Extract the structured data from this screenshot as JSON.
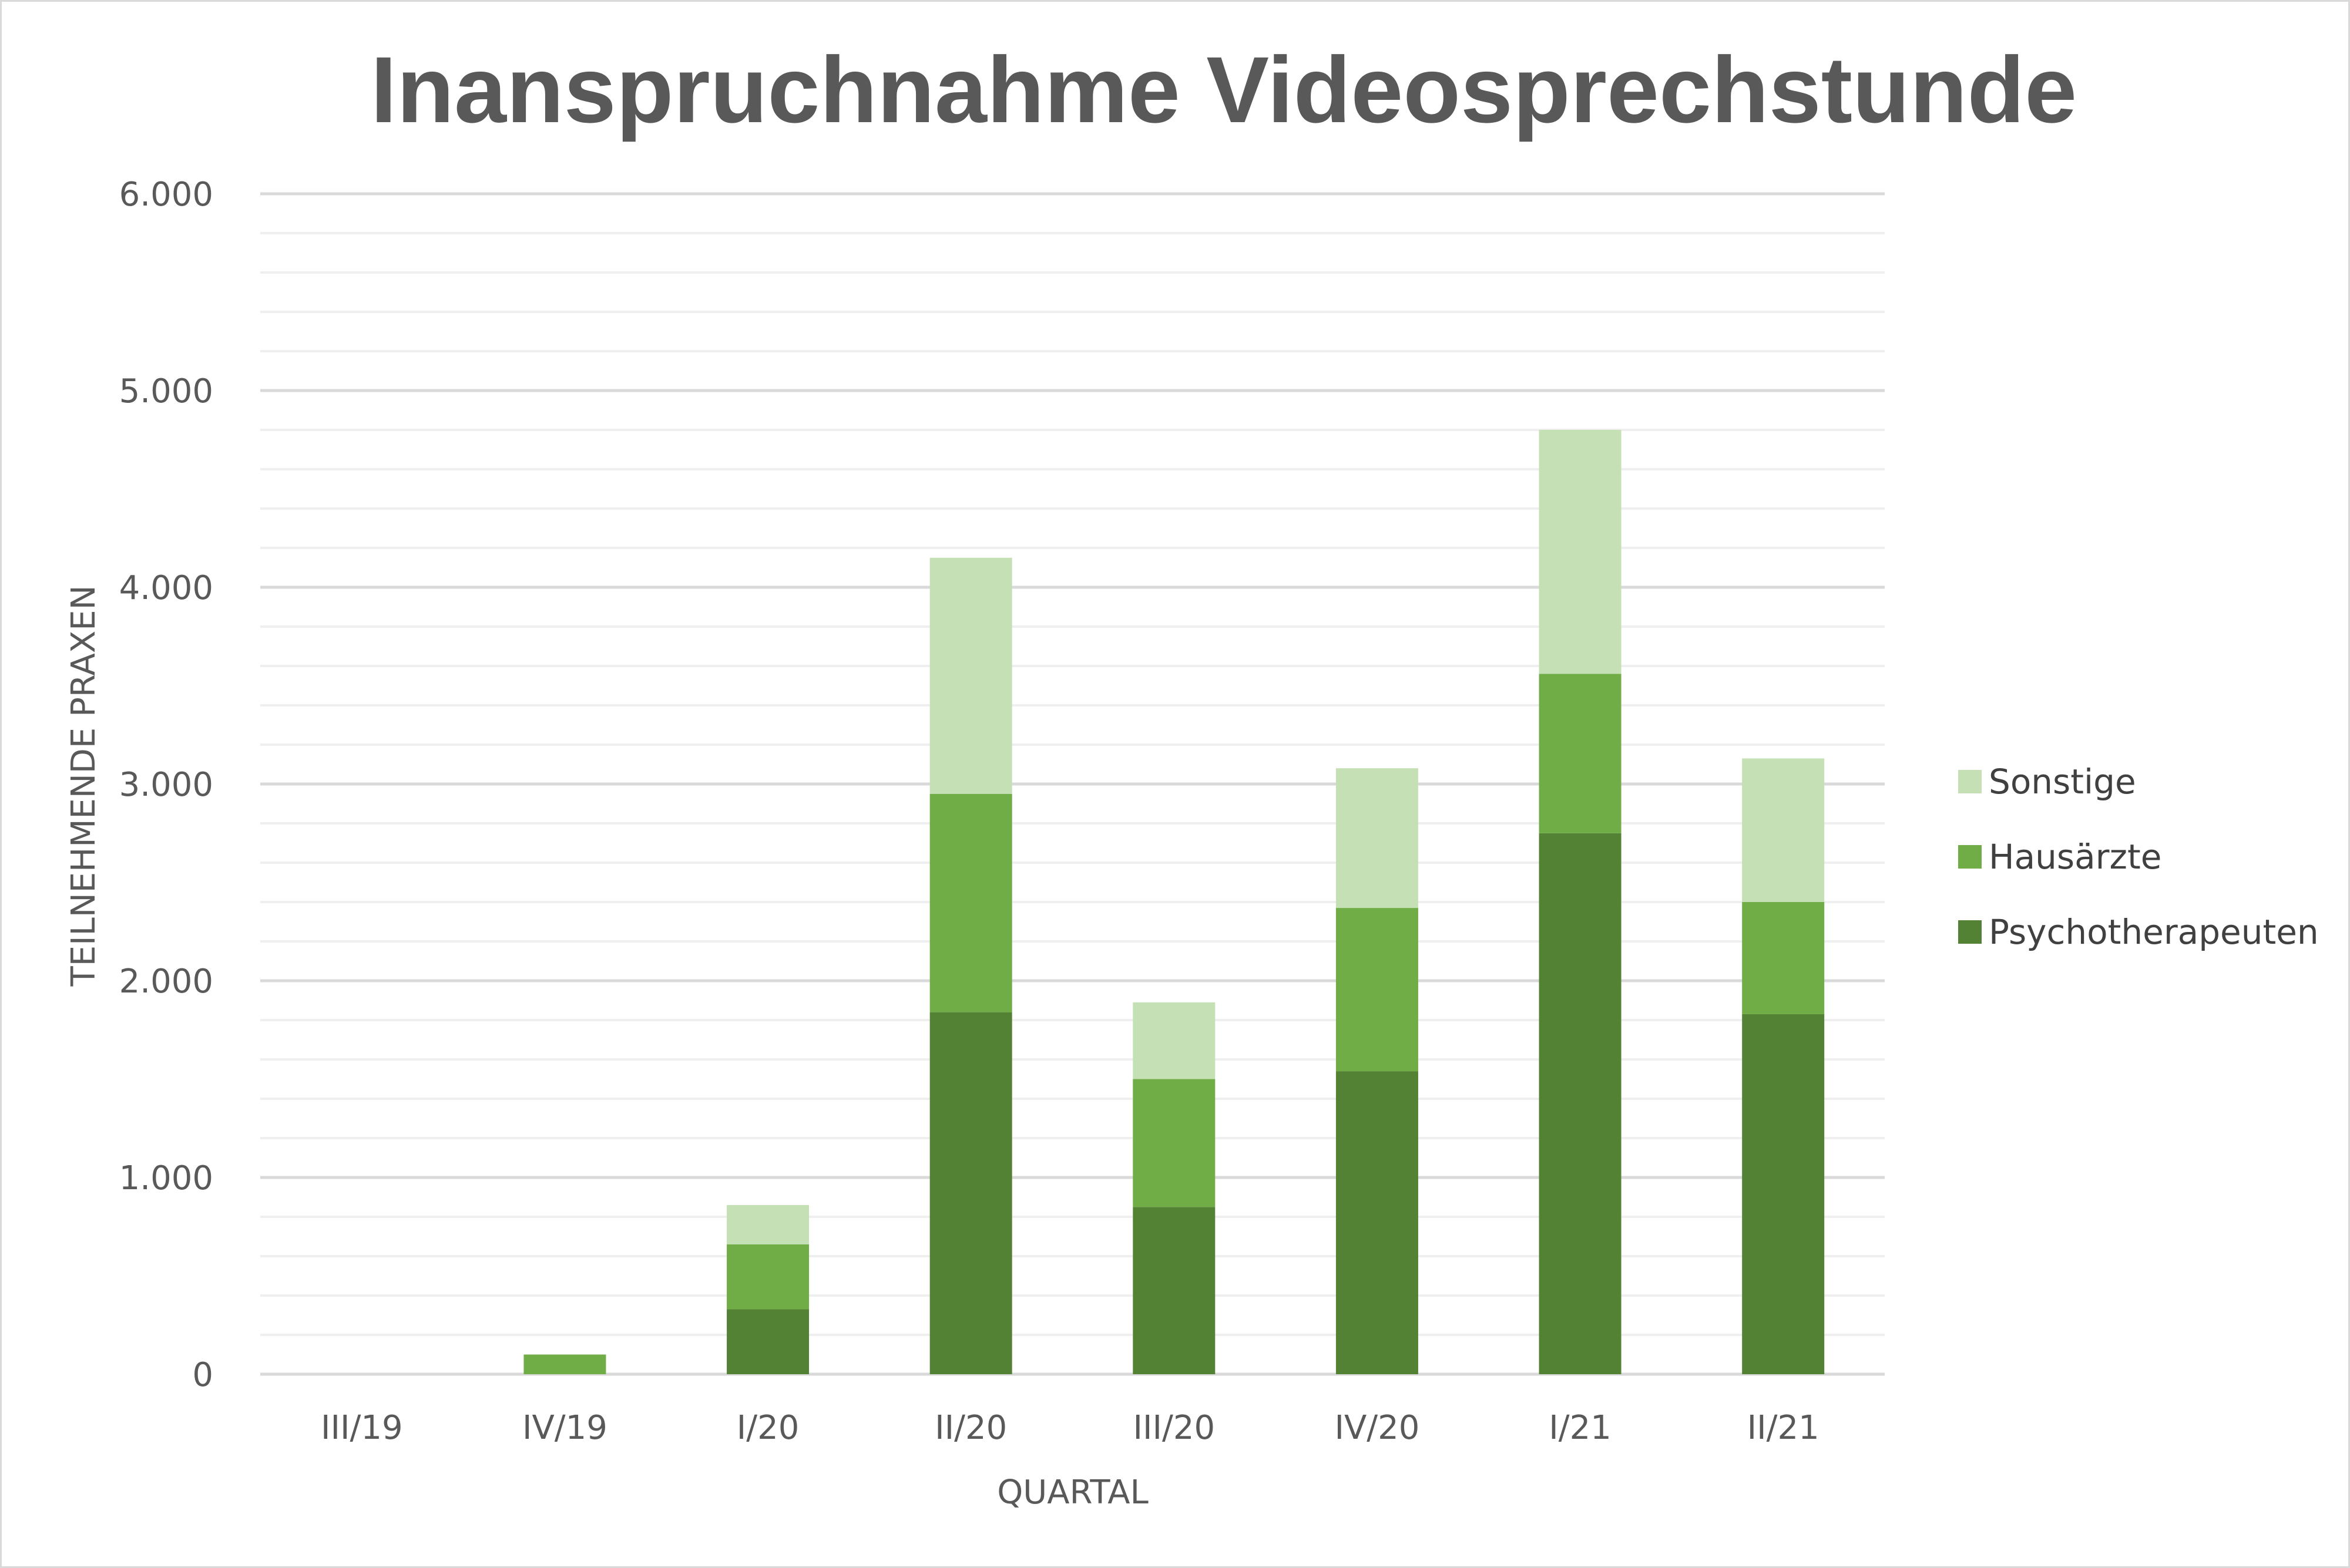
{
  "chart_data": {
    "type": "bar",
    "stacked": true,
    "title": "Inanspruchnahme Videosprechstunde",
    "xlabel": "QUARTAL",
    "ylabel": "TEILNEHMENDE PRAXEN",
    "categories": [
      "III/19",
      "IV/19",
      "I/20",
      "II/20",
      "III/20",
      "IV/20",
      "I/21",
      "II/21"
    ],
    "series": [
      {
        "name": "Psychotherapeuten",
        "color": "#548235",
        "values": [
          0,
          0,
          330,
          1840,
          850,
          1540,
          2750,
          1830
        ]
      },
      {
        "name": "Hausärzte",
        "color": "#70ad47",
        "values": [
          0,
          100,
          330,
          1110,
          650,
          830,
          810,
          570
        ]
      },
      {
        "name": "Sonstige",
        "color": "#c5e0b4",
        "values": [
          0,
          0,
          200,
          1200,
          390,
          710,
          1240,
          730
        ]
      }
    ],
    "ylim": [
      0,
      6000
    ],
    "yticks": [
      0,
      1000,
      2000,
      3000,
      4000,
      5000,
      6000
    ],
    "ytick_labels": [
      "0",
      "1.000",
      "2.000",
      "3.000",
      "4.000",
      "5.000",
      "6.000"
    ],
    "minor_gridlines": true,
    "legend_position": "right",
    "legend_order": [
      "Sonstige",
      "Hausärzte",
      "Psychotherapeuten"
    ]
  }
}
